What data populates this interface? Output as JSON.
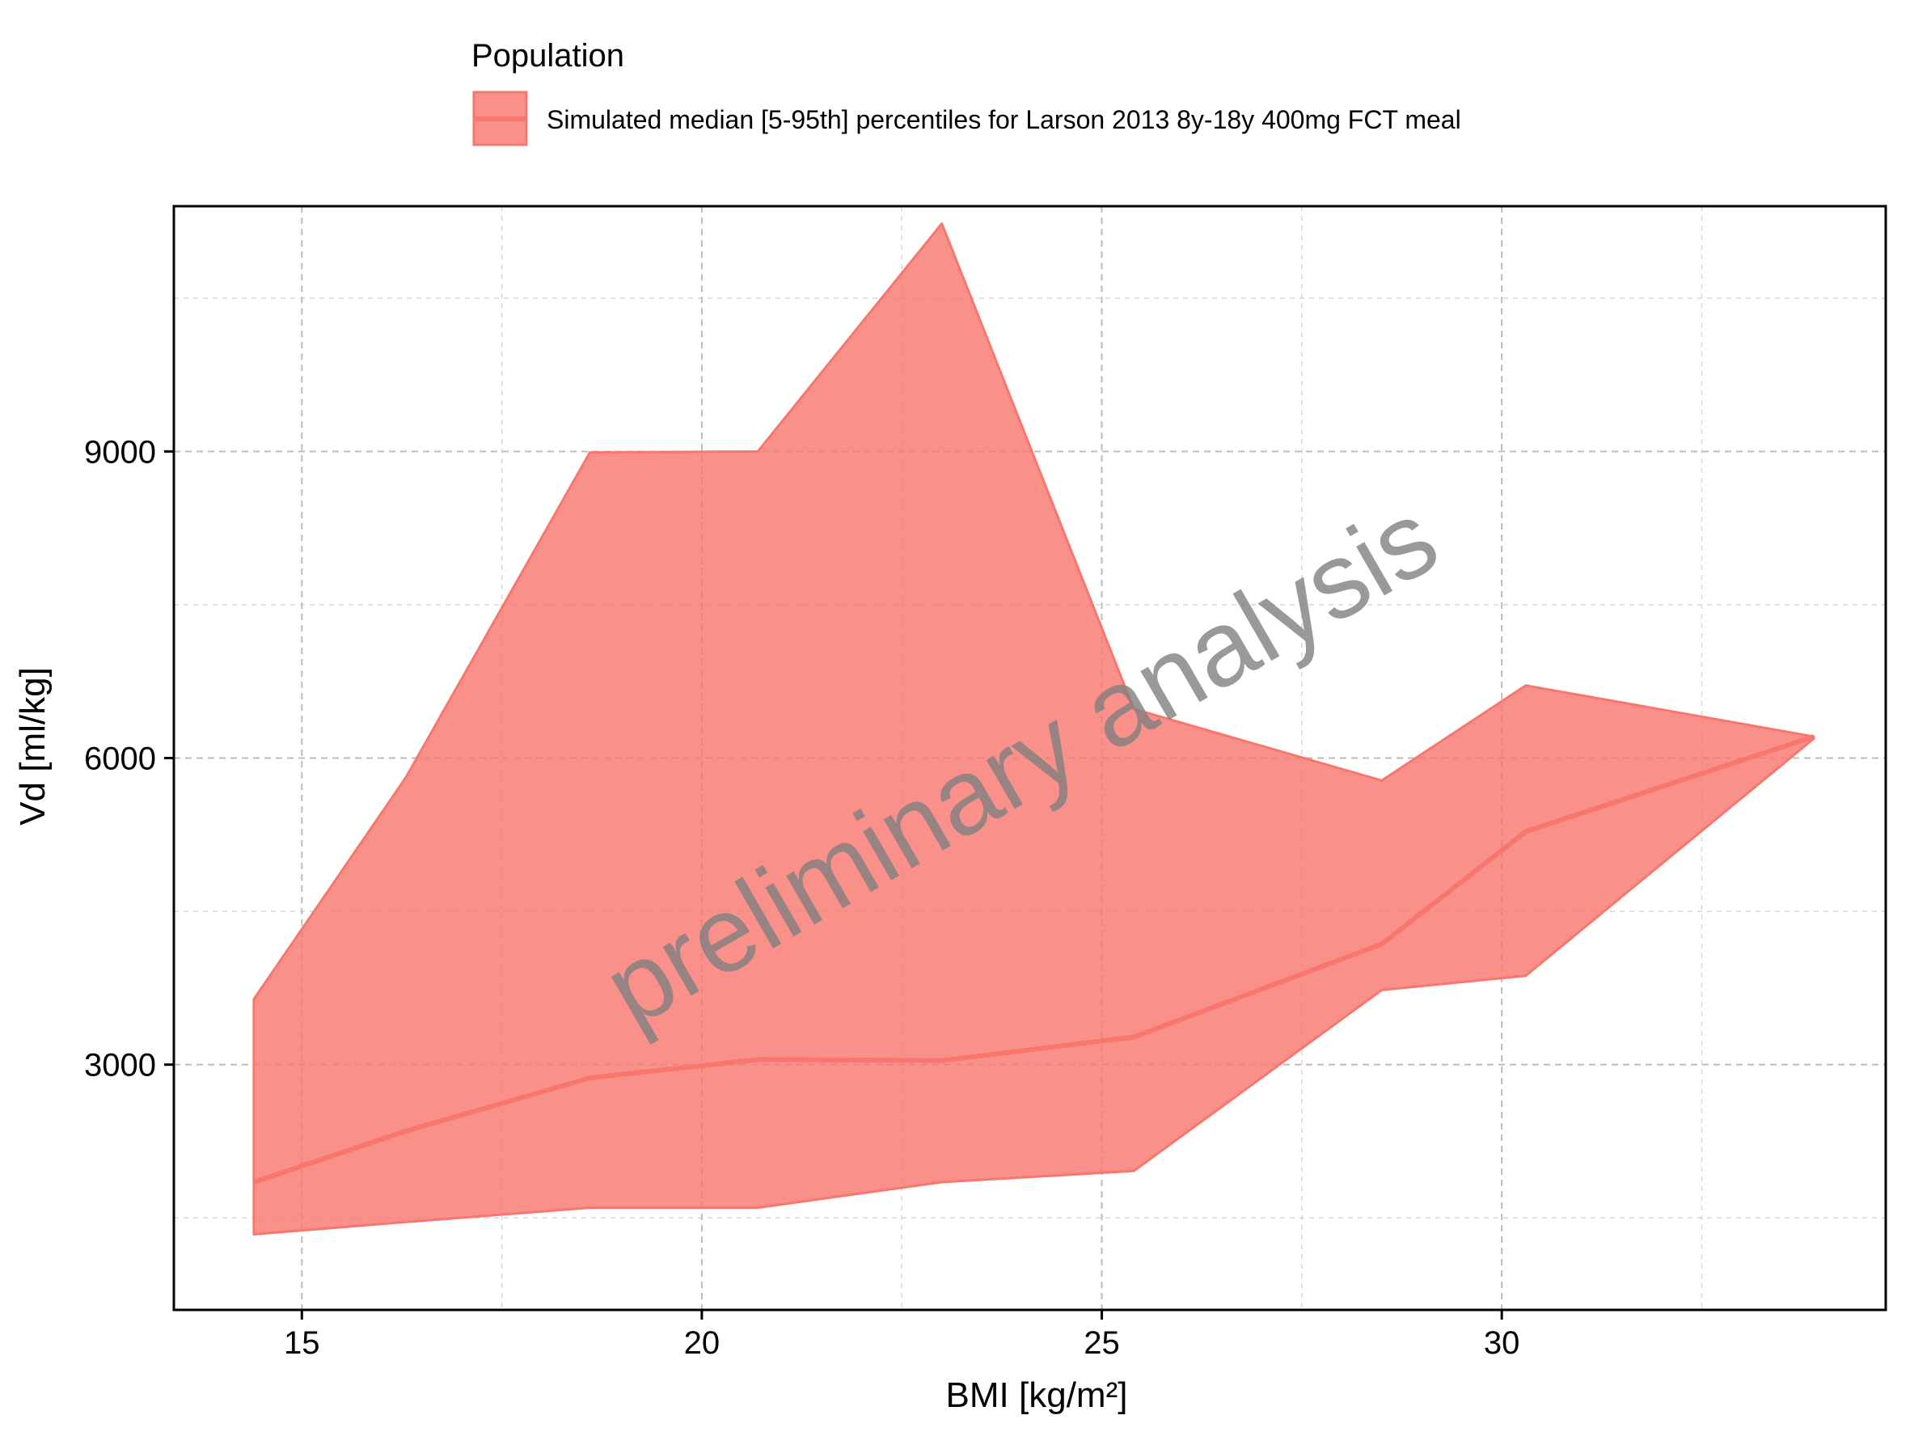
{
  "chart_data": {
    "type": "area",
    "title": "",
    "xlabel": "BMI [kg/m²]",
    "ylabel": "Vd [ml/kg]",
    "xlim": [
      13.4,
      34.8
    ],
    "ylim": [
      600,
      11400
    ],
    "x_ticks": [
      15,
      20,
      25,
      30
    ],
    "x_tick_labels": [
      "15",
      "20",
      "25",
      "30"
    ],
    "x_minor_ticks": [
      17.5,
      22.5,
      27.5,
      32.5
    ],
    "y_ticks": [
      3000,
      6000,
      9000
    ],
    "y_tick_labels": [
      "3000",
      "6000",
      "9000"
    ],
    "y_minor_ticks": [
      1500,
      4500,
      7500,
      10500
    ],
    "grid": true,
    "legend": {
      "title": "Population",
      "position": "top",
      "entries": [
        {
          "label": "Simulated median [5-95th] percentiles for Larson 2013 8y-18y 400mg FCT meal",
          "color": "#F8766D"
        }
      ]
    },
    "series": [
      {
        "name": "Simulated median [5-95th] percentiles for Larson 2013 8y-18y 400mg FCT meal",
        "color": "#F8766D",
        "x": [
          14.4,
          16.3,
          18.6,
          20.7,
          23.0,
          25.4,
          28.5,
          30.3,
          33.9
        ],
        "median": [
          1850,
          2350,
          2870,
          3050,
          3040,
          3270,
          4180,
          5280,
          6210
        ],
        "p5": [
          1340,
          1460,
          1600,
          1600,
          1850,
          1960,
          3730,
          3870,
          6190
        ],
        "p95": [
          3640,
          5810,
          8990,
          9000,
          11230,
          6480,
          5780,
          6710,
          6210
        ]
      }
    ],
    "watermark": "preliminary analysis"
  }
}
